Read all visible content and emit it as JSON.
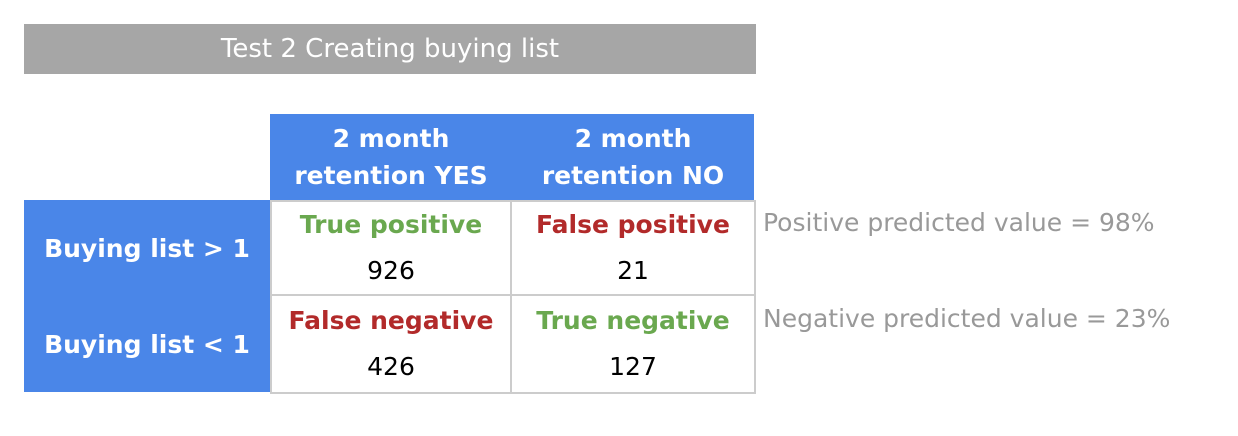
{
  "title": "Test 2 Creating buying list",
  "columns": [
    {
      "line1": "2 month",
      "line2": "retention YES"
    },
    {
      "line1": "2 month",
      "line2": "retention NO"
    }
  ],
  "rows": [
    {
      "label": "Buying list > 1",
      "cells": [
        {
          "outcome": "True positive",
          "kind": "true",
          "count": "926"
        },
        {
          "outcome": "False positive",
          "kind": "false",
          "count": "21"
        }
      ],
      "note": "Positive predicted value = 98%"
    },
    {
      "label": "Buying list < 1",
      "cells": [
        {
          "outcome": "False negative",
          "kind": "false",
          "count": "426"
        },
        {
          "outcome": "True negative",
          "kind": "true",
          "count": "127"
        }
      ],
      "note": "Negative predicted value = 23%"
    }
  ],
  "colors": {
    "title_bg": "#a6a6a6",
    "header_bg": "#4a86e8",
    "true_label": "#6aa84f",
    "false_label": "#b22a2a",
    "note_text": "#999999",
    "grid_border": "#cccccc"
  }
}
